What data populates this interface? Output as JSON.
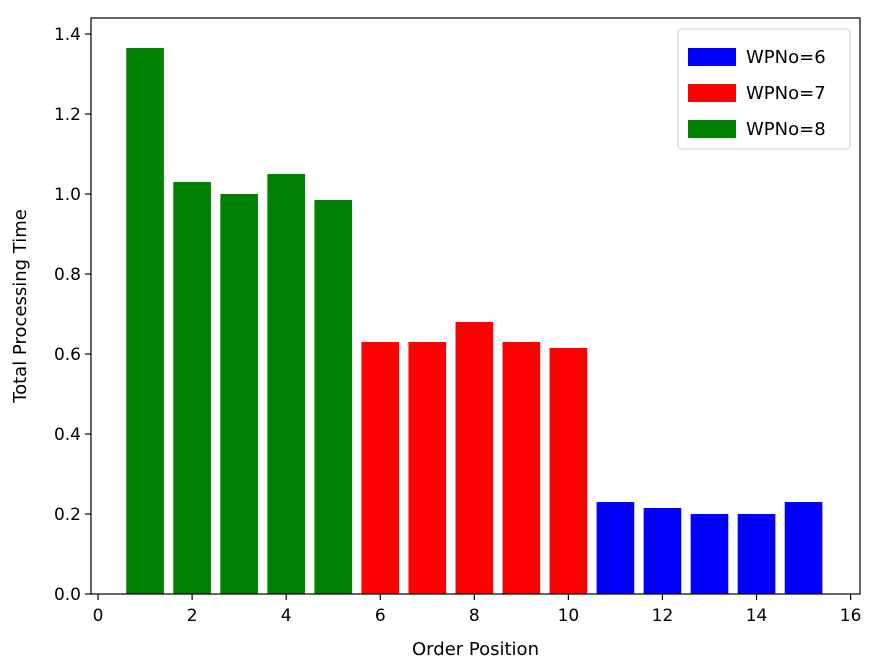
{
  "chart_data": {
    "type": "bar",
    "xlabel": "Order Position",
    "ylabel": "Total Processing Time",
    "xlim": [
      -0.15,
      16.2
    ],
    "ylim": [
      0,
      1.44
    ],
    "xticks": [
      0,
      2,
      4,
      6,
      8,
      10,
      12,
      14,
      16
    ],
    "yticks": [
      0.0,
      0.2,
      0.4,
      0.6,
      0.8,
      1.0,
      1.2,
      1.4
    ],
    "ytick_labels": [
      "0.0",
      "0.2",
      "0.4",
      "0.6",
      "0.8",
      "1.0",
      "1.2",
      "1.4"
    ],
    "legend_position": "top-right",
    "grid": false,
    "series": [
      {
        "name": "WPNo=6",
        "color": "#0000ff",
        "x": [
          11,
          12,
          13,
          14,
          15
        ],
        "values": [
          0.23,
          0.215,
          0.2,
          0.2,
          0.23
        ]
      },
      {
        "name": "WPNo=7",
        "color": "#ff0000",
        "x": [
          6,
          7,
          8,
          9,
          10
        ],
        "values": [
          0.63,
          0.63,
          0.68,
          0.63,
          0.615
        ]
      },
      {
        "name": "WPNo=8",
        "color": "#008000",
        "x": [
          1,
          2,
          3,
          4,
          5
        ],
        "values": [
          1.365,
          1.03,
          1.0,
          1.05,
          0.985
        ]
      }
    ]
  }
}
